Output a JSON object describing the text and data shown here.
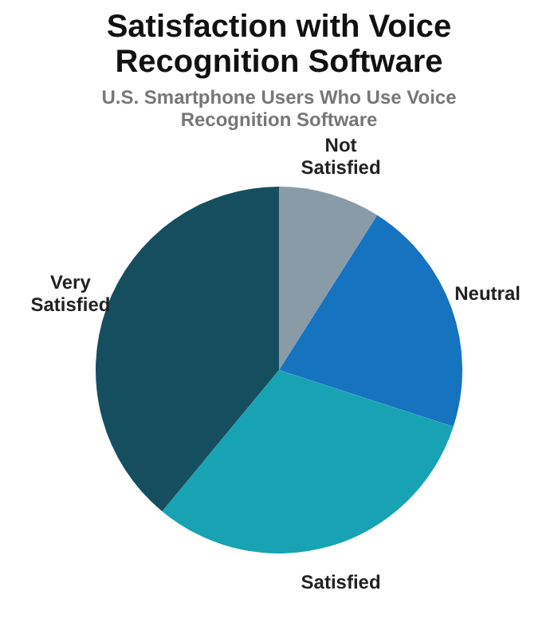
{
  "chart_data": {
    "type": "pie",
    "title": "Satisfaction with Voice Recognition Software",
    "subtitle": "U.S. Smartphone Users Who Use Voice Recognition Software",
    "categories": [
      "Not Satisfied",
      "Neutral",
      "Satisfied",
      "Very Satisfied"
    ],
    "values": [
      9,
      21,
      31,
      39
    ],
    "colors": [
      "#8a9ba8",
      "#1673bf",
      "#17a3b3",
      "#154f5f"
    ],
    "legend": false
  }
}
